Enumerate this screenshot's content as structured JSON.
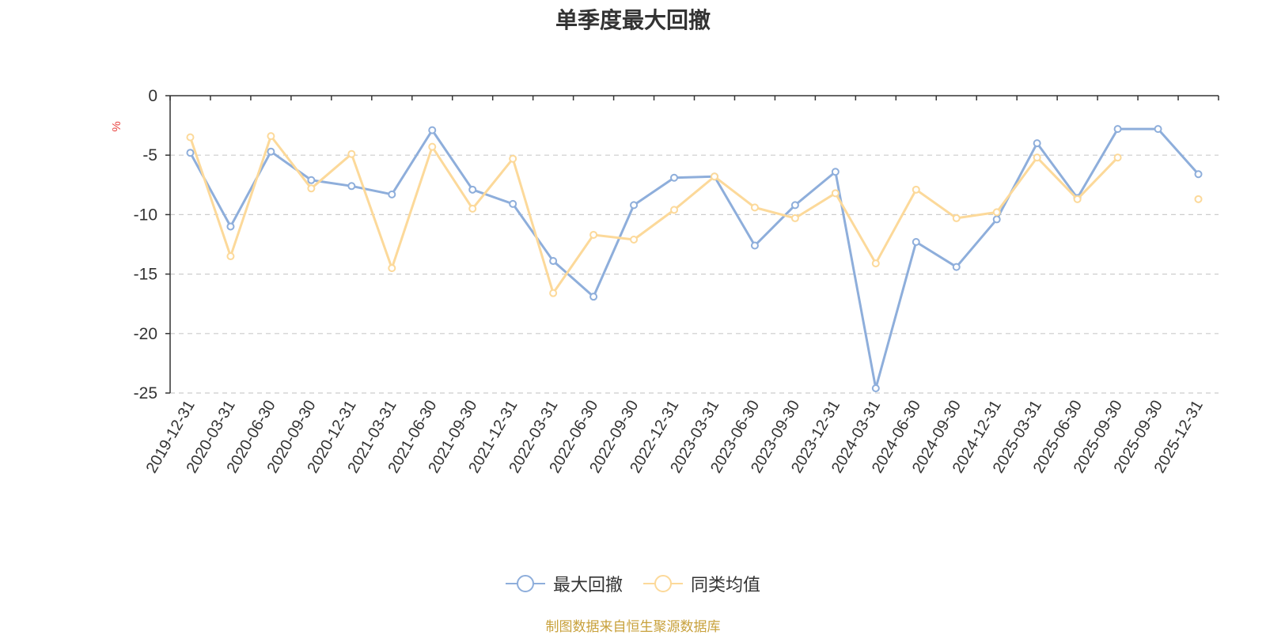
{
  "chart_data": {
    "type": "line",
    "title": "单季度最大回撤",
    "ylabel": "%",
    "xlabel": "",
    "ylim": [
      -25,
      0
    ],
    "yticks": [
      0,
      -5,
      -10,
      -15,
      -20,
      -25
    ],
    "grid": true,
    "legend_position": "bottom",
    "categories": [
      "2019-12-31",
      "2020-03-31",
      "2020-06-30",
      "2020-09-30",
      "2020-12-31",
      "2021-03-31",
      "2021-06-30",
      "2021-09-30",
      "2021-12-31",
      "2022-03-31",
      "2022-06-30",
      "2022-09-30",
      "2022-12-31",
      "2023-03-31",
      "2023-06-30",
      "2023-09-30",
      "2023-12-31",
      "2024-03-31",
      "2024-06-30",
      "2024-09-30",
      "2024-12-31",
      "2025-03-31",
      "2025-06-30",
      "2025-09-30",
      "2025-09-30",
      "2025-12-31"
    ],
    "series": [
      {
        "name": "最大回撤",
        "color": "#8eaedb",
        "values": [
          -4.8,
          -11.0,
          -4.7,
          -7.1,
          -7.6,
          -8.3,
          -2.9,
          -7.9,
          -9.1,
          -13.9,
          -16.9,
          -9.2,
          -6.9,
          -6.8,
          -12.6,
          -9.2,
          -6.4,
          -24.6,
          -12.3,
          -14.4,
          -10.4,
          -4.0,
          -8.6,
          -2.8,
          -2.8,
          -6.6
        ]
      },
      {
        "name": "同类均值",
        "color": "#fcd99a",
        "values": [
          -3.5,
          -13.5,
          -3.4,
          -7.8,
          -4.9,
          -14.5,
          -4.3,
          -9.5,
          -5.3,
          -16.6,
          -11.7,
          -12.1,
          -9.6,
          -6.8,
          -9.4,
          -10.3,
          -8.2,
          -14.1,
          -7.9,
          -10.3,
          -9.8,
          -5.2,
          -8.7,
          -5.2,
          null,
          -8.7
        ]
      }
    ]
  },
  "source_note": "制图数据来自恒生聚源数据库"
}
